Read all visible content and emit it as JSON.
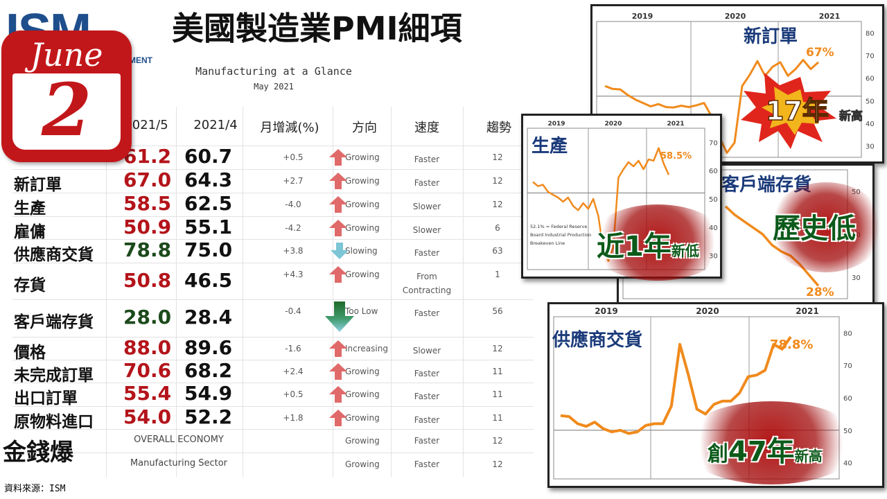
{
  "header": {
    "logo_text": "ISM",
    "logo_sub": "EMENT",
    "title": "美國製造業PMI細項",
    "glance_title": "Manufacturing at a Glance",
    "glance_sub": "May 2021"
  },
  "calendar": {
    "month": "June",
    "day": "2"
  },
  "table": {
    "headers": [
      "2021/5",
      "2021/4",
      "月增減(%)",
      "方向",
      "速度",
      "趨勢"
    ],
    "rows": [
      {
        "label": "",
        "may": "61.2",
        "apr": "60.7",
        "change": "+0.5",
        "direction": "Growing",
        "rate": "Faster",
        "trend": "12",
        "arrow": "up",
        "may_color": "#b3141a"
      },
      {
        "label": "新訂單",
        "may": "67.0",
        "apr": "64.3",
        "change": "+2.7",
        "direction": "Growing",
        "rate": "Faster",
        "trend": "12",
        "arrow": "up",
        "may_color": "#b3141a"
      },
      {
        "label": "生產",
        "may": "58.5",
        "apr": "62.5",
        "change": "-4.0",
        "direction": "Growing",
        "rate": "Slower",
        "trend": "12",
        "arrow": "up",
        "may_color": "#b3141a"
      },
      {
        "label": "雇傭",
        "may": "50.9",
        "apr": "55.1",
        "change": "-4.2",
        "direction": "Growing",
        "rate": "Slower",
        "trend": "6",
        "arrow": "up",
        "may_color": "#b3141a"
      },
      {
        "label": "供應商交貨",
        "may": "78.8",
        "apr": "75.0",
        "change": "+3.8",
        "direction": "Slowing",
        "rate": "Faster",
        "trend": "63",
        "arrow": "down",
        "may_color": "#1c4a1c"
      },
      {
        "label": "存貨",
        "may": "50.8",
        "apr": "46.5",
        "change": "+4.3",
        "direction": "Growing",
        "rate": "From Contracting",
        "trend": "1",
        "arrow": "up",
        "may_color": "#b3141a"
      },
      {
        "label": "客戶端存貨",
        "may": "28.0",
        "apr": "28.4",
        "change": "-0.4",
        "direction": "Too Low",
        "rate": "Faster",
        "trend": "56",
        "arrow": "downbig",
        "may_color": "#1c4a1c"
      },
      {
        "label": "價格",
        "may": "88.0",
        "apr": "89.6",
        "change": "-1.6",
        "direction": "Increasing",
        "rate": "Slower",
        "trend": "12",
        "arrow": "up",
        "may_color": "#b3141a"
      },
      {
        "label": "未完成訂單",
        "may": "70.6",
        "apr": "68.2",
        "change": "+2.4",
        "direction": "Growing",
        "rate": "Faster",
        "trend": "11",
        "arrow": "up",
        "may_color": "#b3141a"
      },
      {
        "label": "出口訂單",
        "may": "55.4",
        "apr": "54.9",
        "change": "+0.5",
        "direction": "Growing",
        "rate": "Faster",
        "trend": "11",
        "arrow": "up",
        "may_color": "#b3141a"
      },
      {
        "label": "原物料進口",
        "may": "54.0",
        "apr": "52.2",
        "change": "+1.8",
        "direction": "Growing",
        "rate": "Faster",
        "trend": "11",
        "arrow": "up",
        "may_color": "#b3141a"
      }
    ],
    "footer_rows": [
      {
        "label": "OVERALL ECONOMY",
        "direction": "Growing",
        "rate": "Faster",
        "trend": "12"
      },
      {
        "label": "Manufacturing Sector",
        "direction": "Growing",
        "rate": "Faster",
        "trend": "12"
      }
    ]
  },
  "chart_data": [
    {
      "type": "line",
      "title": "新訂單",
      "annotation": "67%",
      "x_labels": [
        "2019",
        "2020",
        "2021"
      ],
      "y_ticks": [
        30,
        40,
        50,
        60,
        70,
        80
      ],
      "ylim": [
        25,
        85
      ],
      "color": "#f08a1c",
      "values": [
        56.5,
        55.2,
        55.0,
        52.5,
        50.5,
        49.0,
        47.5,
        48.5,
        47.2,
        47.0,
        47.8,
        47.2,
        48.0,
        49.0,
        43.0,
        34.0,
        27.0,
        31.5,
        56.5,
        61.5,
        67.5,
        61.0,
        65.0,
        67.0,
        61.0,
        64.0,
        68.0,
        64.0,
        67.0
      ],
      "callout": {
        "big": "17年",
        "small": "新高"
      }
    },
    {
      "type": "line",
      "title": "客戶端存貨",
      "annotation": "28%",
      "y_ticks": [
        30,
        40,
        50
      ],
      "ylim": [
        25,
        55
      ],
      "color": "#f08a1c",
      "values": [
        46.5,
        44.5,
        43.0,
        41.5,
        40.0,
        37.5,
        36.0,
        35.0,
        33.0,
        30.5,
        28.0
      ],
      "callout": {
        "big": "歷史低"
      }
    },
    {
      "type": "line",
      "title": "生產",
      "annotation": "58.5%",
      "x_labels": [
        "2019",
        "2020",
        "2021"
      ],
      "y_ticks": [
        30,
        40,
        50,
        60,
        70
      ],
      "ylim": [
        25,
        75
      ],
      "color": "#f08a1c",
      "note": "52.1% = Federal Reserve Board Industrial Production Breakeven Line",
      "values": [
        56.0,
        54.5,
        55.0,
        52.5,
        51.5,
        50.5,
        49.0,
        50.5,
        47.5,
        46.0,
        48.5,
        46.5,
        50.0,
        44.0,
        32.0,
        28.0,
        33.0,
        57.5,
        60.5,
        63.0,
        61.5,
        63.5,
        60.5,
        64.0,
        63.5,
        68.0,
        62.5,
        58.5
      ],
      "callout": {
        "big": "近1年",
        "small": "新低"
      }
    },
    {
      "type": "line",
      "title": "供應商交貨",
      "annotation": "78.8%",
      "x_labels": [
        "2019",
        "2020",
        "2021"
      ],
      "y_ticks": [
        40,
        50,
        60,
        70,
        80
      ],
      "ylim": [
        35,
        85
      ],
      "color": "#f08a1c",
      "values": [
        54.5,
        54.2,
        52.0,
        51.2,
        52.5,
        50.5,
        49.5,
        50.0,
        49.0,
        49.5,
        51.5,
        52.0,
        52.0,
        57.5,
        76.5,
        67.0,
        56.5,
        55.0,
        58.0,
        59.0,
        59.0,
        61.5,
        66.5,
        67.0,
        68.5,
        76.5,
        75.0,
        78.8
      ],
      "callout": {
        "big": "創47年",
        "small": "新高"
      }
    }
  ],
  "footer": {
    "brand": "金錢爆",
    "source": "資料來源：ISM"
  }
}
